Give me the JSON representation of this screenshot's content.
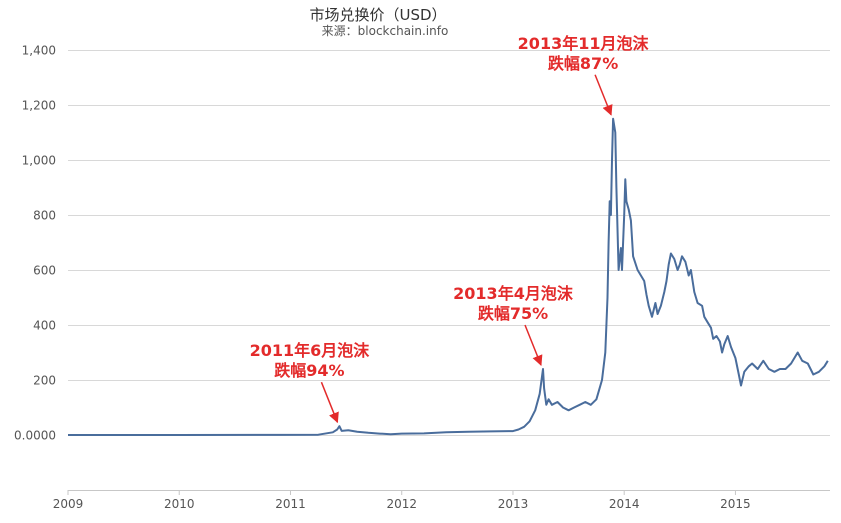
{
  "chart_data": {
    "type": "line",
    "title": "市场兑换价（USD）",
    "subtitle": "来源：blockchain.info",
    "xlabel": "",
    "ylabel": "",
    "xlim": [
      2009.0,
      2015.85
    ],
    "ylim": [
      -200,
      1400
    ],
    "grid": true,
    "legend": "none",
    "line_color": "#4a6d9c",
    "annotation_color": "#e32b2b",
    "y_ticks": [
      {
        "value": 0,
        "label": "0.0000"
      },
      {
        "value": 200,
        "label": "200"
      },
      {
        "value": 400,
        "label": "400"
      },
      {
        "value": 600,
        "label": "600"
      },
      {
        "value": 800,
        "label": "800"
      },
      {
        "value": 1000,
        "label": "1,000"
      },
      {
        "value": 1200,
        "label": "1,200"
      },
      {
        "value": 1400,
        "label": "1,400"
      }
    ],
    "x_ticks": [
      {
        "value": 2009,
        "label": "2009"
      },
      {
        "value": 2010,
        "label": "2010"
      },
      {
        "value": 2011,
        "label": "2011"
      },
      {
        "value": 2012,
        "label": "2012"
      },
      {
        "value": 2013,
        "label": "2013"
      },
      {
        "value": 2014,
        "label": "2014"
      },
      {
        "value": 2015,
        "label": "2015"
      }
    ],
    "series": [
      {
        "x": [
          2009.0,
          2010.0,
          2010.9,
          2011.25,
          2011.38,
          2011.42,
          2011.44,
          2011.46,
          2011.52,
          2011.6,
          2011.7,
          2011.8,
          2011.9,
          2012.0,
          2012.2,
          2012.4,
          2012.6,
          2012.8,
          2013.0,
          2013.05,
          2013.1,
          2013.15,
          2013.2,
          2013.24,
          2013.27,
          2013.28,
          2013.3,
          2013.32,
          2013.35,
          2013.4,
          2013.45,
          2013.5,
          2013.55,
          2013.6,
          2013.65,
          2013.7,
          2013.75,
          2013.8,
          2013.83,
          2013.85,
          2013.86,
          2013.87,
          2013.88,
          2013.89,
          2013.9,
          2013.92,
          2013.93,
          2013.95,
          2013.97,
          2013.98,
          2014.0,
          2014.01,
          2014.02,
          2014.04,
          2014.06,
          2014.08,
          2014.12,
          2014.15,
          2014.18,
          2014.2,
          2014.22,
          2014.25,
          2014.28,
          2014.3,
          2014.33,
          2014.36,
          2014.38,
          2014.4,
          2014.42,
          2014.45,
          2014.48,
          2014.5,
          2014.52,
          2014.55,
          2014.58,
          2014.6,
          2014.63,
          2014.66,
          2014.7,
          2014.72,
          2014.75,
          2014.78,
          2014.8,
          2014.83,
          2014.86,
          2014.88,
          2014.9,
          2014.93,
          2014.96,
          2015.0,
          2015.03,
          2015.05,
          2015.08,
          2015.12,
          2015.15,
          2015.2,
          2015.25,
          2015.3,
          2015.35,
          2015.4,
          2015.45,
          2015.5,
          2015.53,
          2015.56,
          2015.6,
          2015.65,
          2015.7,
          2015.75,
          2015.8,
          2015.83
        ],
        "values": [
          0,
          0.1,
          0.3,
          1,
          10,
          20,
          32,
          15,
          17,
          12,
          8,
          5,
          3,
          5,
          6,
          10,
          12,
          13,
          14,
          20,
          30,
          50,
          90,
          150,
          240,
          170,
          110,
          130,
          110,
          120,
          100,
          90,
          100,
          110,
          120,
          110,
          130,
          200,
          300,
          500,
          700,
          850,
          800,
          1000,
          1150,
          1100,
          900,
          600,
          680,
          600,
          800,
          930,
          850,
          820,
          780,
          650,
          600,
          580,
          560,
          510,
          470,
          430,
          480,
          440,
          470,
          520,
          560,
          620,
          660,
          640,
          600,
          620,
          650,
          630,
          580,
          600,
          520,
          480,
          470,
          430,
          410,
          390,
          350,
          360,
          340,
          300,
          330,
          360,
          320,
          280,
          220,
          180,
          230,
          250,
          260,
          240,
          270,
          240,
          230,
          240,
          240,
          260,
          280,
          300,
          270,
          260,
          220,
          230,
          250,
          270
        ]
      }
    ],
    "annotations": [
      {
        "line1": "2011年6月泡沫",
        "line2": "跌幅94%",
        "point_x": 2011.44,
        "point_y": 32
      },
      {
        "line1": "2013年4月泡沫",
        "line2": "跌幅75%",
        "point_x": 2013.27,
        "point_y": 240
      },
      {
        "line1": "2013年11月泡沫",
        "line2": "跌幅87%",
        "point_x": 2013.9,
        "point_y": 1150
      }
    ]
  }
}
